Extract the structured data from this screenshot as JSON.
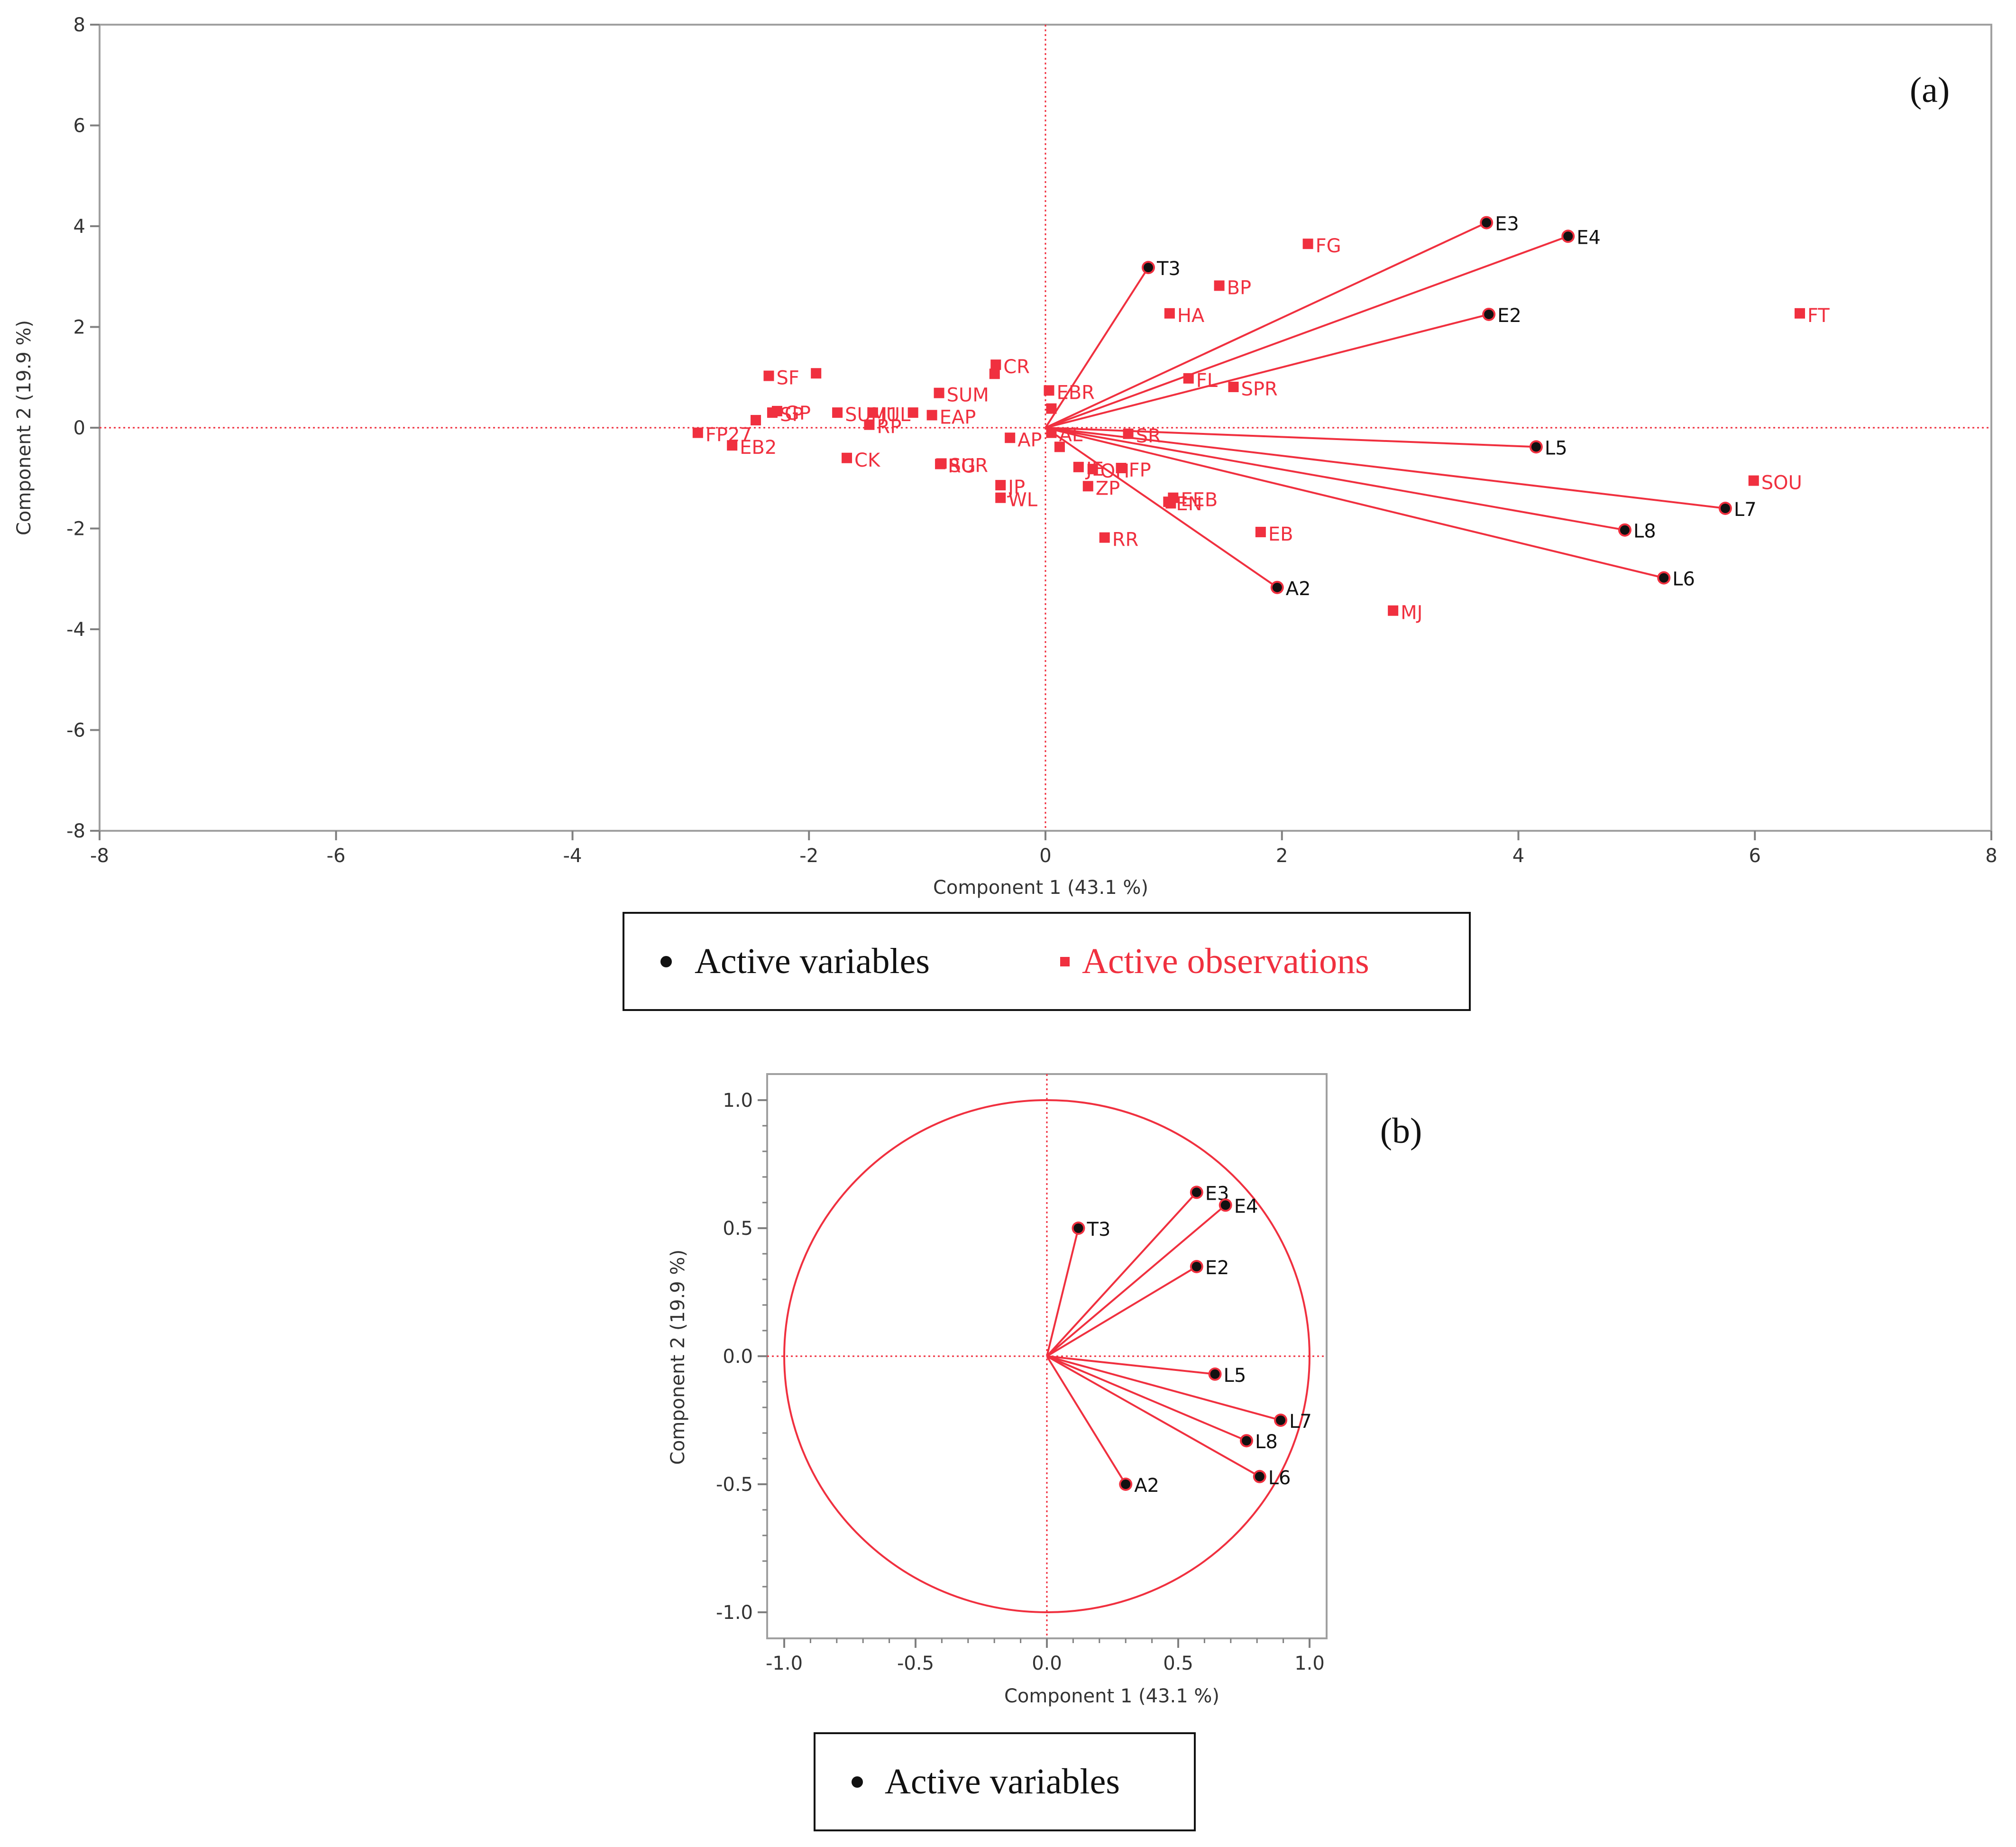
{
  "colors": {
    "accent": "#f0303f",
    "variable": "#111111",
    "axis": "#808080",
    "text": "#333333"
  },
  "chart_data": [
    {
      "type": "scatter",
      "panel_label": "(a)",
      "xlabel": "Component 1  (43.1 %)",
      "ylabel": "Component 2  (19.9 %)",
      "xlim": [
        -8,
        8
      ],
      "ylim": [
        -8,
        8
      ],
      "x_ticks": [
        "-8",
        "-6",
        "-4",
        "-2",
        "0",
        "2",
        "4",
        "6",
        "8"
      ],
      "y_ticks": [
        "8",
        "6",
        "4",
        "2",
        "0",
        "-2",
        "-4",
        "-6",
        "-8"
      ],
      "legend": {
        "position": "bottom",
        "variables_label": "Active variables",
        "observations_label": "Active observations"
      },
      "variables": [
        {
          "name": "E3",
          "x": 3.73,
          "y": 4.07
        },
        {
          "name": "E4",
          "x": 4.42,
          "y": 3.8
        },
        {
          "name": "T3",
          "x": 0.87,
          "y": 3.18
        },
        {
          "name": "E2",
          "x": 3.75,
          "y": 2.25
        },
        {
          "name": "L5",
          "x": 4.15,
          "y": -0.38
        },
        {
          "name": "L7",
          "x": 5.75,
          "y": -1.6
        },
        {
          "name": "L8",
          "x": 4.9,
          "y": -2.03
        },
        {
          "name": "L6",
          "x": 5.23,
          "y": -2.98
        },
        {
          "name": "A2",
          "x": 1.96,
          "y": -3.17
        }
      ],
      "observations": [
        {
          "name": "FG",
          "x": 2.22,
          "y": 3.65
        },
        {
          "name": "BP",
          "x": 1.47,
          "y": 2.82
        },
        {
          "name": "HA",
          "x": 1.05,
          "y": 2.27
        },
        {
          "name": "FT",
          "x": 6.38,
          "y": 2.27
        },
        {
          "name": "FL",
          "x": 1.21,
          "y": 0.98
        },
        {
          "name": "SPR",
          "x": 1.59,
          "y": 0.81
        },
        {
          "name": "SF",
          "x": -2.34,
          "y": 1.03
        },
        {
          "name": "",
          "x": -1.94,
          "y": 1.08
        },
        {
          "name": "SUM1",
          "x": -1.76,
          "y": 0.3
        },
        {
          "name": "JUL",
          "x": -1.46,
          "y": 0.3
        },
        {
          "name": "SUM",
          "x": -0.9,
          "y": 0.69
        },
        {
          "name": "CR",
          "x": -0.42,
          "y": 1.25
        },
        {
          "name": "",
          "x": -0.43,
          "y": 1.07
        },
        {
          "name": "EBR",
          "x": 0.03,
          "y": 0.74
        },
        {
          "name": "",
          "x": 0.05,
          "y": 0.38
        },
        {
          "name": "GP",
          "x": -2.27,
          "y": 0.33
        },
        {
          "name": "",
          "x": -2.45,
          "y": 0.15
        },
        {
          "name": "SP",
          "x": -2.31,
          "y": 0.3
        },
        {
          "name": "FP27",
          "x": -2.94,
          "y": -0.1
        },
        {
          "name": "EB2",
          "x": -2.65,
          "y": -0.35
        },
        {
          "name": "RP",
          "x": -1.49,
          "y": 0.06
        },
        {
          "name": "",
          "x": -1.12,
          "y": 0.3
        },
        {
          "name": "EAP",
          "x": -0.96,
          "y": 0.25
        },
        {
          "name": "AP",
          "x": -0.3,
          "y": -0.2
        },
        {
          "name": "AL",
          "x": 0.05,
          "y": -0.1
        },
        {
          "name": "",
          "x": 0.12,
          "y": -0.38
        },
        {
          "name": "SR",
          "x": 0.7,
          "y": -0.12
        },
        {
          "name": "CK",
          "x": -1.68,
          "y": -0.6
        },
        {
          "name": "SUR",
          "x": -0.88,
          "y": -0.71
        },
        {
          "name": "RG",
          "x": -0.89,
          "y": -0.72
        },
        {
          "name": "JP",
          "x": -0.38,
          "y": -1.14
        },
        {
          "name": "WL",
          "x": -0.38,
          "y": -1.39
        },
        {
          "name": "JE",
          "x": 0.28,
          "y": -0.78
        },
        {
          "name": "OH",
          "x": 0.4,
          "y": -0.82
        },
        {
          "name": "FP",
          "x": 0.64,
          "y": -0.8
        },
        {
          "name": "ZP",
          "x": 0.36,
          "y": -1.16
        },
        {
          "name": "EEB",
          "x": 1.08,
          "y": -1.39
        },
        {
          "name": "",
          "x": 1.06,
          "y": -1.5
        },
        {
          "name": "EN",
          "x": 1.04,
          "y": -1.47
        },
        {
          "name": "EB",
          "x": 1.82,
          "y": -2.07
        },
        {
          "name": "RR",
          "x": 0.5,
          "y": -2.18
        },
        {
          "name": "SOU",
          "x": 5.99,
          "y": -1.05
        },
        {
          "name": "MJ",
          "x": 2.94,
          "y": -3.63
        }
      ]
    },
    {
      "type": "scatter",
      "panel_label": "(b)",
      "xlabel": "Component 1  (43.1 %)",
      "ylabel": "Component 2  (19.9 %)",
      "xlim": [
        -1.0,
        1.0
      ],
      "ylim": [
        -1.0,
        1.0
      ],
      "x_ticks": [
        "-1.0",
        "-0.5",
        "0.0",
        "0.5",
        "1.0"
      ],
      "y_ticks": [
        "1.0",
        "0.5",
        "0.0",
        "-0.5",
        "-1.0"
      ],
      "unit_circle": true,
      "legend": {
        "position": "bottom",
        "variables_label": "Active variables"
      },
      "variables": [
        {
          "name": "E3",
          "x": 0.57,
          "y": 0.64
        },
        {
          "name": "E4",
          "x": 0.68,
          "y": 0.59
        },
        {
          "name": "T3",
          "x": 0.12,
          "y": 0.5
        },
        {
          "name": "E2",
          "x": 0.57,
          "y": 0.35
        },
        {
          "name": "L5",
          "x": 0.64,
          "y": -0.07
        },
        {
          "name": "L7",
          "x": 0.89,
          "y": -0.25
        },
        {
          "name": "L8",
          "x": 0.76,
          "y": -0.33
        },
        {
          "name": "L6",
          "x": 0.81,
          "y": -0.47
        },
        {
          "name": "A2",
          "x": 0.3,
          "y": -0.5
        }
      ]
    }
  ]
}
